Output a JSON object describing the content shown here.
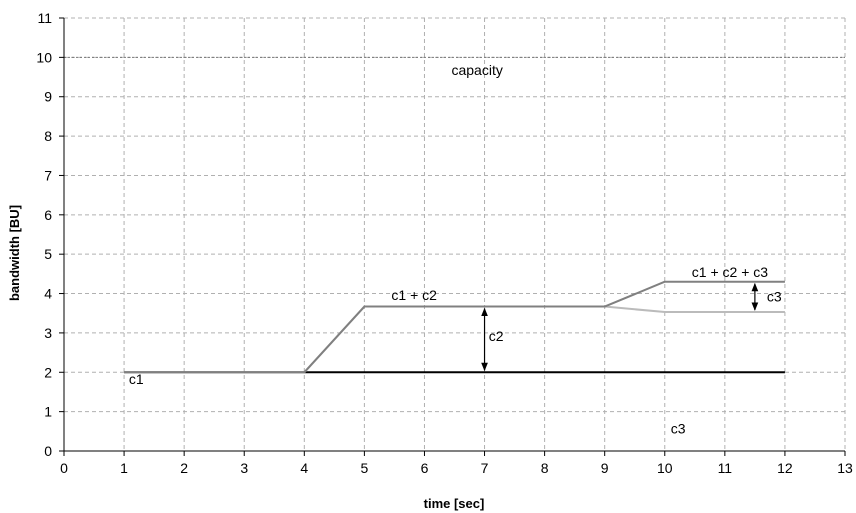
{
  "chart_data": {
    "type": "line",
    "xlabel": "time [sec]",
    "ylabel": "bandwidth [BU]",
    "xlim": [
      0,
      13
    ],
    "ylim": [
      0,
      11
    ],
    "xticks": [
      "0",
      "1",
      "2",
      "3",
      "4",
      "5",
      "6",
      "7",
      "8",
      "9",
      "10",
      "11",
      "12",
      "13"
    ],
    "yticks": [
      "0",
      "1",
      "2",
      "3",
      "4",
      "5",
      "6",
      "7",
      "8",
      "9",
      "10",
      "11"
    ],
    "grid": true,
    "capacity": {
      "value": 10,
      "label": "capacity",
      "color": "#777777"
    },
    "series": [
      {
        "key": "c1",
        "color": "#000000",
        "x": [
          1,
          12
        ],
        "y": [
          2,
          2
        ]
      },
      {
        "key": "c1c2",
        "color": "#bbbbbb",
        "x": [
          1,
          4,
          5,
          9,
          10,
          12
        ],
        "y": [
          2,
          2,
          3.67,
          3.67,
          3.53,
          3.53
        ]
      },
      {
        "key": "total",
        "color": "#808080",
        "x": [
          1,
          4,
          5,
          9,
          10,
          12
        ],
        "y": [
          2,
          2,
          3.67,
          3.67,
          4.3,
          4.3
        ]
      }
    ],
    "annotations": [
      {
        "text": "c1",
        "x": 1.08,
        "y": 1.7
      },
      {
        "text": "c1 + c2",
        "x": 5.45,
        "y": 3.83
      },
      {
        "text": "c2",
        "x": 7.07,
        "y": 2.8
      },
      {
        "text": "c1 + c2 + c3",
        "x": 10.45,
        "y": 4.42
      },
      {
        "text": "c3",
        "x": 11.7,
        "y": 3.8
      },
      {
        "text": "c3",
        "x": 10.1,
        "y": 0.45
      }
    ],
    "arrows": [
      {
        "x": 7,
        "y1": 2,
        "y2": 3.67
      },
      {
        "x": 11.5,
        "y1": 3.53,
        "y2": 4.3
      }
    ]
  }
}
